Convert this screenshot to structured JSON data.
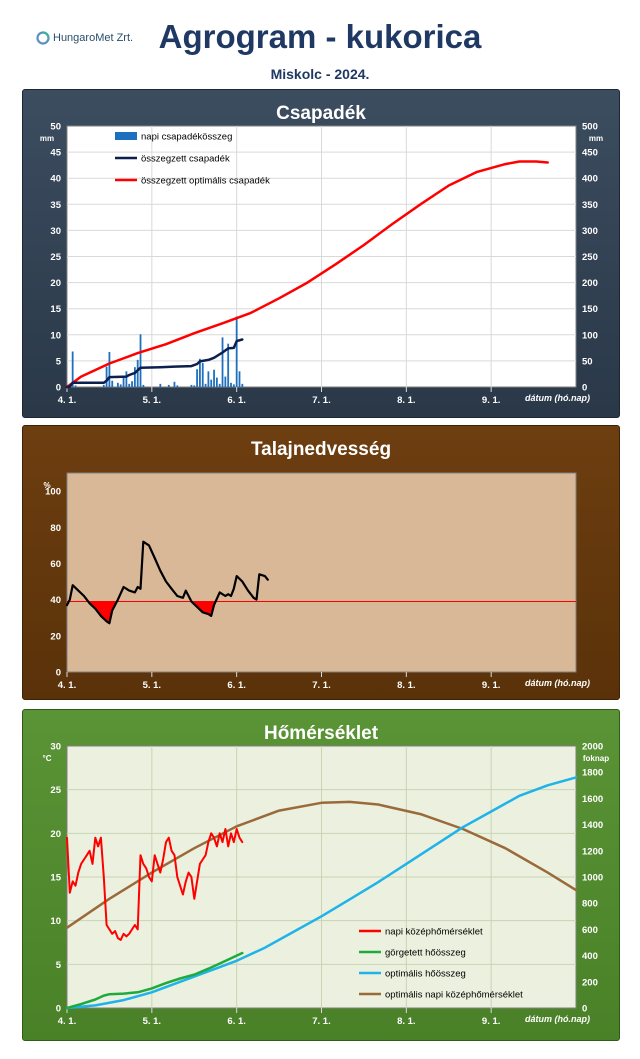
{
  "header": {
    "logo_text": "HungaroMet Zrt.",
    "title": "Agrogram - kukorica",
    "subtitle": "Miskolc  - 2024."
  },
  "colors": {
    "precip_panel": "#34455a",
    "soil_panel": "#6a3b0e",
    "temp_panel": "#569130",
    "bar_blue": "#1f6fbf",
    "sum_navy": "#0d1f4d",
    "optimal_red": "#ff0000",
    "soil_plot_bg": "#d9b898",
    "temp_plot_bg": "#ebf1de",
    "heat_green": "#1faa3f",
    "heat_optimal_cyan": "#1fb3ea",
    "temp_optimal_brown": "#9a6a3a"
  },
  "chart_data": [
    {
      "type": "bar",
      "title": "Csapadék",
      "x_ticks": [
        "4. 1.",
        "5. 1.",
        "6. 1.",
        "7. 1.",
        "8. 1.",
        "9. 1."
      ],
      "xlabel": "dátum (hó.nap)",
      "xlim_days": [
        0,
        180
      ],
      "ylabel_left": "mm",
      "ylabel_right": "mm",
      "ylim_left": [
        0,
        50
      ],
      "yticks_left": [
        0,
        5,
        10,
        15,
        20,
        25,
        30,
        35,
        40,
        45,
        50
      ],
      "ylim_right": [
        0,
        500
      ],
      "yticks_right": [
        0,
        50,
        100,
        150,
        200,
        250,
        300,
        350,
        400,
        450,
        500
      ],
      "grid": true,
      "legend_position": "top-left",
      "series": [
        {
          "name": "napi csapadékösszeg",
          "kind": "bar",
          "axis": "left",
          "color": "#1f6fbf",
          "points": [
            [
              1,
              0.5
            ],
            [
              2,
              6.8
            ],
            [
              3,
              0.3
            ],
            [
              13,
              0.4
            ],
            [
              14,
              3.9
            ],
            [
              15,
              6.7
            ],
            [
              16,
              1.2
            ],
            [
              18,
              0.8
            ],
            [
              19,
              0.5
            ],
            [
              20,
              2.0
            ],
            [
              21,
              3.0
            ],
            [
              22,
              0.6
            ],
            [
              23,
              1.1
            ],
            [
              24,
              3.8
            ],
            [
              25,
              5.2
            ],
            [
              26,
              10.1
            ],
            [
              27,
              0.4
            ],
            [
              33,
              0.6
            ],
            [
              36,
              0.4
            ],
            [
              38,
              1.0
            ],
            [
              39,
              0.3
            ],
            [
              44,
              0.4
            ],
            [
              45,
              0.3
            ],
            [
              46,
              3.4
            ],
            [
              47,
              5.4
            ],
            [
              48,
              4.6
            ],
            [
              49,
              0.6
            ],
            [
              50,
              3.0
            ],
            [
              51,
              1.4
            ],
            [
              52,
              3.3
            ],
            [
              53,
              1.8
            ],
            [
              54,
              0.6
            ],
            [
              55,
              9.5
            ],
            [
              56,
              2.0
            ],
            [
              57,
              8.3
            ],
            [
              58,
              0.8
            ],
            [
              59,
              0.5
            ],
            [
              60,
              13.5
            ],
            [
              61,
              3.0
            ],
            [
              62,
              0.6
            ]
          ]
        },
        {
          "name": "összegzett csapadék",
          "kind": "line",
          "axis": "right",
          "color": "#0d1f4d",
          "points": [
            [
              0,
              0
            ],
            [
              1,
              1
            ],
            [
              2,
              8
            ],
            [
              13,
              8
            ],
            [
              14,
              12
            ],
            [
              15,
              19
            ],
            [
              21,
              20
            ],
            [
              22,
              23
            ],
            [
              24,
              27
            ],
            [
              26,
              37
            ],
            [
              33,
              38
            ],
            [
              38,
              39
            ],
            [
              44,
              40
            ],
            [
              46,
              44
            ],
            [
              47,
              49
            ],
            [
              50,
              52
            ],
            [
              52,
              56
            ],
            [
              55,
              66
            ],
            [
              57,
              74
            ],
            [
              59,
              75
            ],
            [
              60,
              88
            ],
            [
              62,
              91
            ]
          ]
        },
        {
          "name": "összegzett optimális csapadék",
          "kind": "line",
          "axis": "right",
          "color": "#ff0000",
          "points": [
            [
              0,
              0
            ],
            [
              5,
              20
            ],
            [
              15,
              45
            ],
            [
              25,
              65
            ],
            [
              35,
              82
            ],
            [
              45,
              103
            ],
            [
              55,
              122
            ],
            [
              65,
              142
            ],
            [
              75,
              170
            ],
            [
              85,
              200
            ],
            [
              95,
              235
            ],
            [
              105,
              272
            ],
            [
              115,
              312
            ],
            [
              125,
              350
            ],
            [
              135,
              386
            ],
            [
              145,
              412
            ],
            [
              155,
              427
            ],
            [
              160,
              432
            ],
            [
              166,
              432
            ],
            [
              170,
              430
            ]
          ]
        }
      ]
    },
    {
      "type": "line",
      "title": "Talajnedvesség",
      "x_ticks": [
        "4. 1.",
        "5. 1.",
        "6. 1.",
        "7. 1.",
        "8. 1.",
        "9. 1."
      ],
      "xlabel": "dátum (hó.nap)",
      "xlim_days": [
        0,
        180
      ],
      "ylabel": "%",
      "ylim": [
        0,
        110
      ],
      "yticks": [
        0,
        20,
        40,
        60,
        80,
        100
      ],
      "threshold": 39,
      "series": [
        {
          "name": "talajnedvesség",
          "color": "#000000",
          "points": [
            [
              0,
              37
            ],
            [
              1,
              40
            ],
            [
              2,
              48
            ],
            [
              4,
              45
            ],
            [
              6,
              42
            ],
            [
              8,
              38
            ],
            [
              10,
              35
            ],
            [
              12,
              31
            ],
            [
              14,
              28
            ],
            [
              15,
              27
            ],
            [
              16,
              34
            ],
            [
              18,
              40
            ],
            [
              20,
              47
            ],
            [
              22,
              45
            ],
            [
              24,
              44
            ],
            [
              25,
              47
            ],
            [
              26,
              46
            ],
            [
              27,
              72
            ],
            [
              29,
              70
            ],
            [
              31,
              63
            ],
            [
              33,
              56
            ],
            [
              35,
              50
            ],
            [
              37,
              46
            ],
            [
              39,
              42
            ],
            [
              41,
              41
            ],
            [
              42,
              45
            ],
            [
              44,
              39
            ],
            [
              46,
              36
            ],
            [
              48,
              33
            ],
            [
              50,
              32
            ],
            [
              51,
              31
            ],
            [
              52,
              37
            ],
            [
              54,
              44
            ],
            [
              56,
              42
            ],
            [
              57,
              43
            ],
            [
              58,
              42
            ],
            [
              59,
              46
            ],
            [
              60,
              53
            ],
            [
              62,
              50
            ],
            [
              64,
              45
            ],
            [
              66,
              41
            ],
            [
              67,
              40
            ],
            [
              68,
              54
            ],
            [
              70,
              53
            ],
            [
              71,
              51
            ]
          ]
        }
      ]
    },
    {
      "type": "line",
      "title": "Hőmérséklet",
      "x_ticks": [
        "4. 1.",
        "5. 1.",
        "6. 1.",
        "7. 1.",
        "8. 1.",
        "9. 1."
      ],
      "xlabel": "dátum (hó.nap)",
      "xlim_days": [
        0,
        180
      ],
      "ylabel_left": "°C",
      "ylabel_right": "foknap",
      "ylim_left": [
        0,
        30
      ],
      "yticks_left": [
        0,
        5,
        10,
        15,
        20,
        25,
        30
      ],
      "ylim_right": [
        0,
        2000
      ],
      "yticks_right": [
        0,
        200,
        400,
        600,
        800,
        1000,
        1200,
        1400,
        1600,
        1800,
        2000
      ],
      "grid": true,
      "legend_position": "bottom-right",
      "series": [
        {
          "name": "napi középhőmérséklet",
          "axis": "left",
          "color": "#ff0000",
          "points": [
            [
              0,
              19.5
            ],
            [
              1,
              13.2
            ],
            [
              2,
              14.5
            ],
            [
              3,
              14.0
            ],
            [
              4,
              15.5
            ],
            [
              5,
              16.5
            ],
            [
              6,
              17.0
            ],
            [
              7,
              17.5
            ],
            [
              8,
              18.0
            ],
            [
              9,
              16.5
            ],
            [
              10,
              19.5
            ],
            [
              11,
              18.5
            ],
            [
              12,
              19.5
            ],
            [
              13,
              15.0
            ],
            [
              14,
              9.5
            ],
            [
              15,
              9.0
            ],
            [
              16,
              8.5
            ],
            [
              17,
              8.8
            ],
            [
              18,
              8.0
            ],
            [
              19,
              7.8
            ],
            [
              20,
              8.5
            ],
            [
              21,
              8.2
            ],
            [
              22,
              8.5
            ],
            [
              23,
              9.0
            ],
            [
              24,
              9.5
            ],
            [
              25,
              9.0
            ],
            [
              26,
              17.5
            ],
            [
              27,
              16.5
            ],
            [
              28,
              16.0
            ],
            [
              29,
              15.0
            ],
            [
              30,
              14.5
            ],
            [
              31,
              17.5
            ],
            [
              32,
              16.5
            ],
            [
              33,
              15.5
            ],
            [
              34,
              17.0
            ],
            [
              35,
              19.0
            ],
            [
              36,
              19.5
            ],
            [
              37,
              18.0
            ],
            [
              38,
              17.5
            ],
            [
              39,
              15.0
            ],
            [
              40,
              14.0
            ],
            [
              41,
              13.0
            ],
            [
              42,
              14.5
            ],
            [
              43,
              15.5
            ],
            [
              44,
              15.0
            ],
            [
              45,
              12.5
            ],
            [
              46,
              14.5
            ],
            [
              47,
              16.5
            ],
            [
              48,
              17.0
            ],
            [
              49,
              17.5
            ],
            [
              50,
              19.0
            ],
            [
              51,
              20.0
            ],
            [
              52,
              19.5
            ],
            [
              53,
              18.5
            ],
            [
              54,
              20.0
            ],
            [
              55,
              19.0
            ],
            [
              56,
              20.5
            ],
            [
              57,
              18.5
            ],
            [
              58,
              20.0
            ],
            [
              59,
              19.0
            ],
            [
              60,
              20.5
            ],
            [
              61,
              19.5
            ],
            [
              62,
              19.0
            ]
          ]
        },
        {
          "name": "görgetett hőösszeg",
          "axis": "right",
          "color": "#1faa3f",
          "points": [
            [
              0,
              0
            ],
            [
              5,
              30
            ],
            [
              10,
              65
            ],
            [
              13,
              95
            ],
            [
              15,
              105
            ],
            [
              20,
              110
            ],
            [
              25,
              120
            ],
            [
              30,
              150
            ],
            [
              35,
              190
            ],
            [
              40,
              225
            ],
            [
              45,
              255
            ],
            [
              50,
              300
            ],
            [
              55,
              350
            ],
            [
              60,
              400
            ],
            [
              62,
              420
            ]
          ]
        },
        {
          "name": "optimális hőösszeg",
          "axis": "right",
          "color": "#1fb3ea",
          "points": [
            [
              0,
              0
            ],
            [
              10,
              20
            ],
            [
              20,
              60
            ],
            [
              30,
              120
            ],
            [
              40,
              200
            ],
            [
              50,
              280
            ],
            [
              60,
              360
            ],
            [
              70,
              460
            ],
            [
              80,
              580
            ],
            [
              90,
              700
            ],
            [
              100,
              830
            ],
            [
              110,
              960
            ],
            [
              120,
              1100
            ],
            [
              130,
              1240
            ],
            [
              140,
              1380
            ],
            [
              150,
              1500
            ],
            [
              160,
              1620
            ],
            [
              170,
              1700
            ],
            [
              180,
              1760
            ]
          ]
        },
        {
          "name": "optimális napi középhőmérséklet",
          "axis": "left",
          "color": "#9a6a3a",
          "points": [
            [
              0,
              9.2
            ],
            [
              15,
              12.5
            ],
            [
              30,
              15.5
            ],
            [
              45,
              18.3
            ],
            [
              60,
              20.8
            ],
            [
              75,
              22.6
            ],
            [
              90,
              23.5
            ],
            [
              100,
              23.6
            ],
            [
              110,
              23.3
            ],
            [
              125,
              22.2
            ],
            [
              140,
              20.5
            ],
            [
              155,
              18.3
            ],
            [
              170,
              15.5
            ],
            [
              180,
              13.5
            ]
          ]
        }
      ]
    }
  ]
}
